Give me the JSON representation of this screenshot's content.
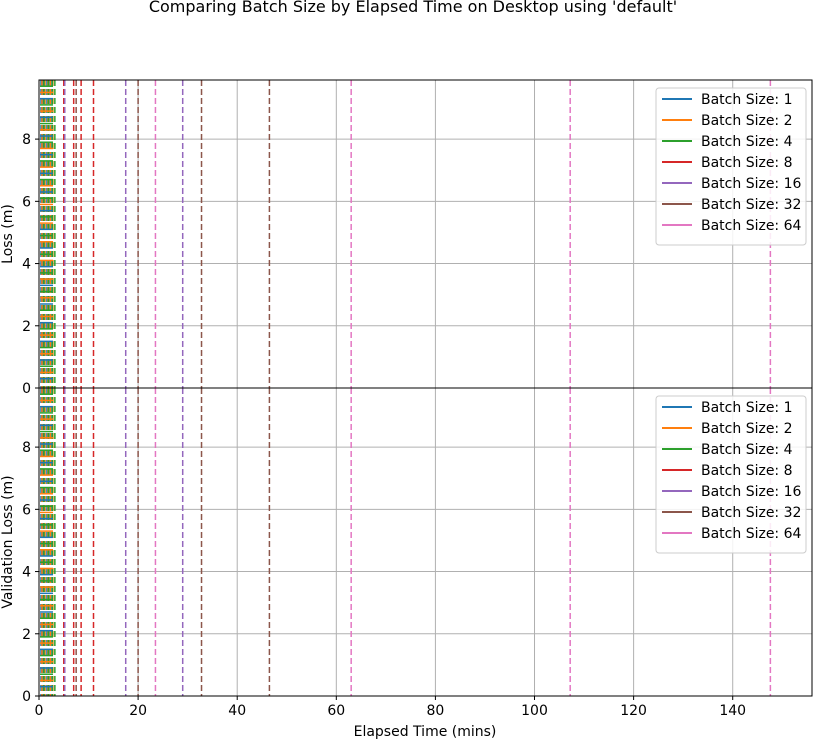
{
  "chart_data": {
    "type": "line",
    "title": "Comparing Batch Size by Elapsed Time on Desktop using 'default'",
    "xlabel": "Elapsed Time (mins)",
    "xlim": [
      0,
      156
    ],
    "xticks": [
      0,
      20,
      40,
      60,
      80,
      100,
      120,
      140
    ],
    "grid": true,
    "colors": [
      "#1f77b4",
      "#ff7f0e",
      "#2ca02c",
      "#d62728",
      "#9467bd",
      "#8c564b",
      "#e377c2"
    ],
    "legend": [
      "Batch Size: 1",
      "Batch Size: 2",
      "Batch Size: 4",
      "Batch Size: 8",
      "Batch Size: 16",
      "Batch Size: 32",
      "Batch Size: 64"
    ],
    "legend_position": "top-right",
    "panels": [
      {
        "ylabel": "Loss (m)",
        "ylim": [
          0,
          9.9
        ],
        "yticks": [
          0,
          2,
          4,
          6,
          8
        ]
      },
      {
        "ylabel": "Validation Loss (m)",
        "ylim": [
          0,
          9.9
        ],
        "yticks": [
          0,
          2,
          4,
          6,
          8
        ]
      }
    ],
    "epoch_markers": [
      {
        "name": "Batch Size: 1",
        "x": [
          0.4,
          0.8,
          1.2,
          1.6,
          2.0,
          2.4
        ]
      },
      {
        "name": "Batch Size: 2",
        "x": [
          0.6,
          1.2,
          1.8,
          2.3,
          2.8
        ]
      },
      {
        "name": "Batch Size: 4",
        "x": [
          1.0,
          1.9,
          2.7,
          3.2
        ]
      },
      {
        "name": "Batch Size: 8",
        "x": [
          5.0,
          7.0,
          8.5,
          11.0
        ]
      },
      {
        "name": "Batch Size: 16",
        "x": [
          5.2,
          17.5,
          29.0
        ]
      },
      {
        "name": "Batch Size: 32",
        "x": [
          7.5,
          20.0,
          32.8,
          46.5
        ]
      },
      {
        "name": "Batch Size: 64",
        "x": [
          23.5,
          63.0,
          107.2,
          147.6
        ]
      }
    ],
    "loss_ticks_y": [
      0.3,
      0.5,
      0.7,
      0.9,
      1.1,
      1.3,
      1.5,
      1.7,
      1.9,
      2.1,
      2.3,
      2.5,
      2.7,
      2.9,
      3.1,
      3.3,
      3.5,
      3.7,
      3.9,
      4.1,
      4.3,
      4.5,
      4.7,
      4.9,
      5.1,
      5.3,
      5.5,
      5.7,
      5.9,
      6.1,
      6.3,
      6.5,
      6.7,
      6.9,
      7.1,
      7.3,
      7.5,
      7.7,
      7.9,
      8.1,
      8.3,
      8.5,
      8.7,
      8.9,
      9.1,
      9.3,
      9.5,
      9.7
    ]
  }
}
